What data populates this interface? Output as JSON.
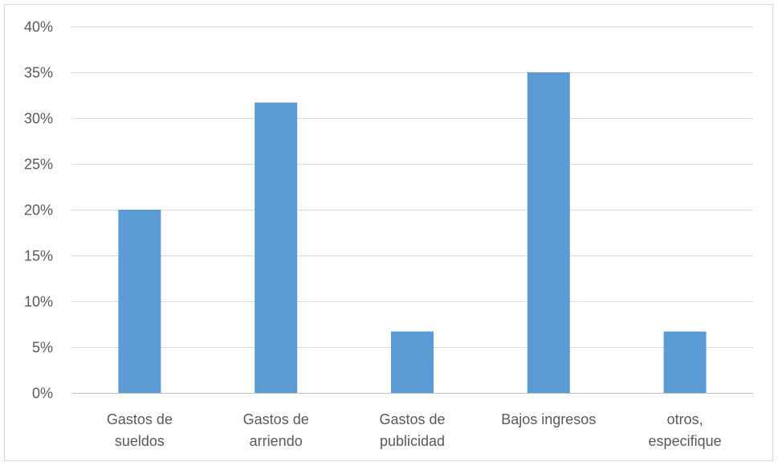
{
  "chart_data": {
    "type": "bar",
    "categories": [
      [
        "Gastos de",
        "sueldos"
      ],
      [
        "Gastos de",
        "arriendo"
      ],
      [
        "Gastos de",
        "publicidad"
      ],
      [
        "Bajos ingresos"
      ],
      [
        "otros,",
        "especifique"
      ]
    ],
    "values": [
      20,
      31.7,
      6.7,
      35,
      6.7
    ],
    "y_ticks": [
      "0%",
      "5%",
      "10%",
      "15%",
      "20%",
      "25%",
      "30%",
      "35%",
      "40%"
    ],
    "ylim": [
      0,
      40
    ],
    "grid": true,
    "bar_color": "#5b9bd5",
    "grid_color": "#d9d9d9",
    "axis_color": "#bfbfbf",
    "text_color": "#595959"
  }
}
